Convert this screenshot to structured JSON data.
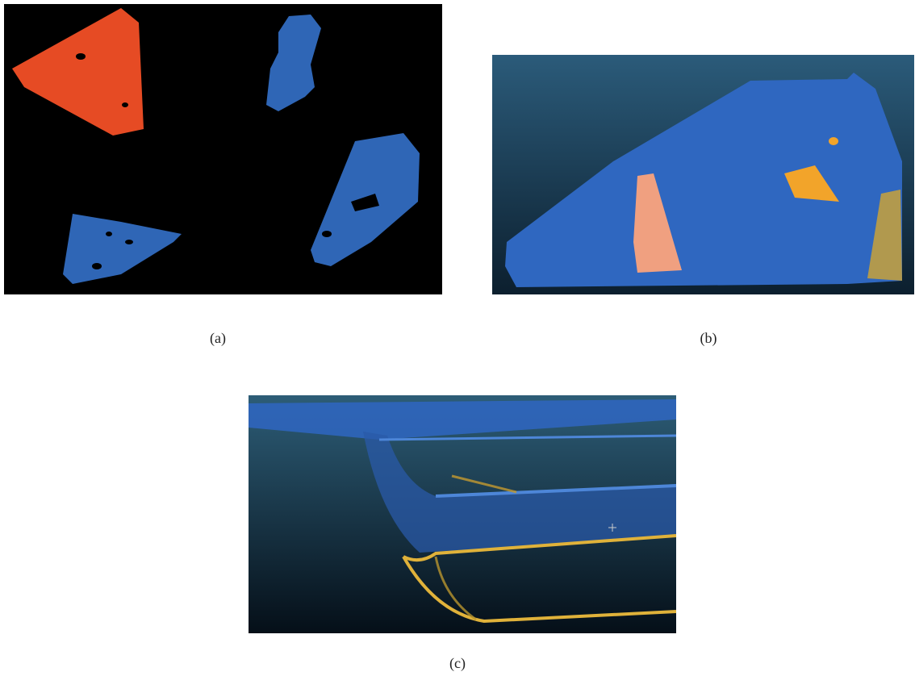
{
  "figures": [
    {
      "caption": "(a)"
    },
    {
      "caption": "(b)"
    },
    {
      "caption": "(c)"
    }
  ]
}
